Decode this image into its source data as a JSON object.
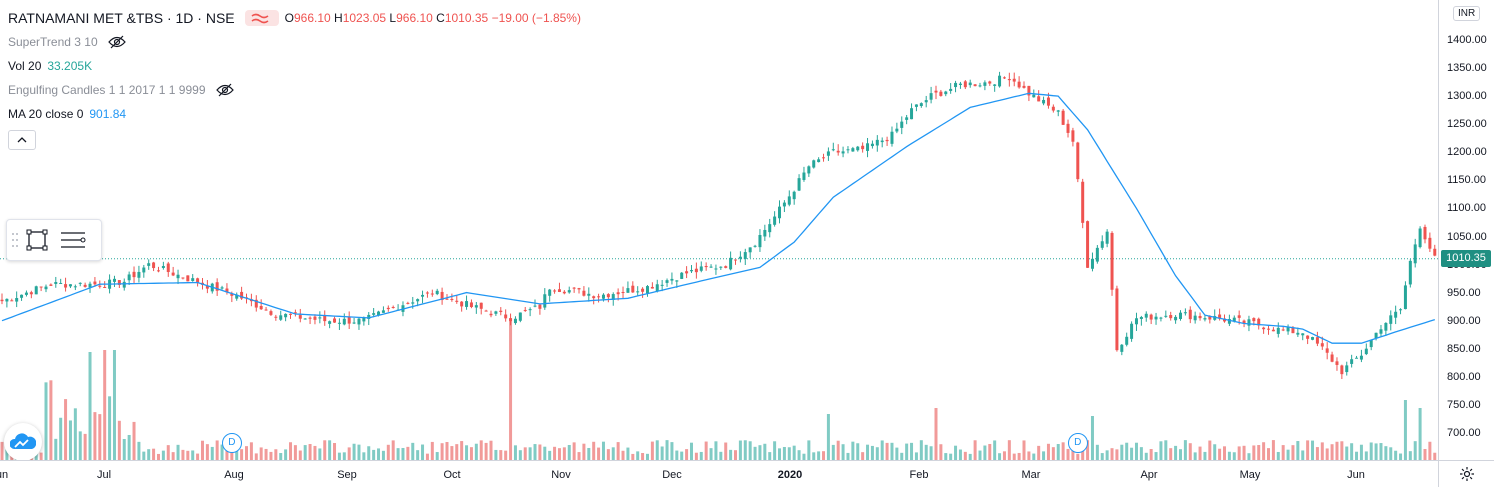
{
  "legend": {
    "symbol": "RATNAMANI MET &TBS · 1D · NSE",
    "ohlc": {
      "o_label": "O",
      "o": "966.10",
      "h_label": "H",
      "h": "1023.05",
      "l_label": "L",
      "l": "966.10",
      "c_label": "C",
      "c": "1010.35",
      "change": "−19.00 (−1.85%)"
    },
    "supertrend": {
      "label": "SuperTrend 3 10"
    },
    "vol": {
      "label": "Vol 20",
      "value": "33.205K"
    },
    "engulfing": {
      "label": "Engulfing Candles 1 1 2017 1 1 9999"
    },
    "ma": {
      "label": "MA 20 close 0",
      "value": "901.84"
    }
  },
  "price_axis": {
    "currency": "INR",
    "ticks": [
      "1400.00",
      "1350.00",
      "1300.00",
      "1250.00",
      "1200.00",
      "1150.00",
      "1100.00",
      "1050.00",
      "1000.00",
      "950.00",
      "900.00",
      "850.00",
      "800.00",
      "750.00",
      "700.00"
    ],
    "last_price": "1010.35"
  },
  "time_axis": {
    "labels": [
      "un",
      "Jul",
      "Aug",
      "Sep",
      "Oct",
      "Nov",
      "Dec",
      "2020",
      "Feb",
      "Mar",
      "Apr",
      "May",
      "Jun"
    ]
  },
  "markers": {
    "dividend": "D"
  },
  "colors": {
    "up": "#26a69a",
    "down": "#ef5350",
    "ma": "#2196f3",
    "up_vol": "#80cbc4",
    "down_vol": "#f19a99",
    "last_line": "#26a69a"
  },
  "icons": {
    "eye_hidden": "eye-crossed-icon",
    "collapse": "chevron-up-icon",
    "rect_tool": "rectangle-select-icon",
    "lines_tool": "horizontal-lines-icon",
    "logo": "tradingview-cloud-logo",
    "settings": "gear-icon"
  },
  "chart_data": {
    "type": "candlestick",
    "price_range": [
      680,
      1430
    ],
    "x_labels": [
      "un",
      "Jul",
      "Aug",
      "Sep",
      "Oct",
      "Nov",
      "Dec",
      "2020",
      "Feb",
      "Mar",
      "Apr",
      "May",
      "Jun"
    ],
    "waypoints_close": [
      [
        0,
        935
      ],
      [
        10,
        965
      ],
      [
        20,
        965
      ],
      [
        25,
        970
      ],
      [
        30,
        1000
      ],
      [
        38,
        975
      ],
      [
        48,
        945
      ],
      [
        56,
        912
      ],
      [
        66,
        900
      ],
      [
        74,
        900
      ],
      [
        82,
        930
      ],
      [
        88,
        950
      ],
      [
        96,
        925
      ],
      [
        104,
        905
      ],
      [
        110,
        925
      ],
      [
        112,
        960
      ],
      [
        122,
        945
      ],
      [
        132,
        960
      ],
      [
        140,
        985
      ],
      [
        148,
        1000
      ],
      [
        154,
        1040
      ],
      [
        158,
        1085
      ],
      [
        162,
        1135
      ],
      [
        165,
        1175
      ],
      [
        170,
        1200
      ],
      [
        176,
        1205
      ],
      [
        182,
        1230
      ],
      [
        186,
        1275
      ],
      [
        190,
        1300
      ],
      [
        196,
        1320
      ],
      [
        202,
        1325
      ],
      [
        206,
        1335
      ],
      [
        210,
        1305
      ],
      [
        216,
        1270
      ],
      [
        219,
        1220
      ],
      [
        222,
        1000
      ],
      [
        226,
        1060
      ],
      [
        228,
        850
      ],
      [
        232,
        905
      ],
      [
        240,
        912
      ],
      [
        248,
        905
      ],
      [
        256,
        895
      ],
      [
        262,
        882
      ],
      [
        266,
        880
      ],
      [
        270,
        850
      ],
      [
        274,
        810
      ],
      [
        278,
        840
      ],
      [
        282,
        890
      ],
      [
        286,
        920
      ],
      [
        288,
        1005
      ],
      [
        290,
        1070
      ],
      [
        293,
        1010
      ]
    ],
    "ma20_points": [
      [
        0,
        900
      ],
      [
        20,
        965
      ],
      [
        40,
        968
      ],
      [
        60,
        912
      ],
      [
        75,
        905
      ],
      [
        95,
        950
      ],
      [
        110,
        930
      ],
      [
        128,
        940
      ],
      [
        145,
        975
      ],
      [
        155,
        995
      ],
      [
        162,
        1040
      ],
      [
        170,
        1120
      ],
      [
        185,
        1210
      ],
      [
        198,
        1280
      ],
      [
        210,
        1305
      ],
      [
        216,
        1300
      ],
      [
        222,
        1240
      ],
      [
        232,
        1100
      ],
      [
        240,
        980
      ],
      [
        246,
        910
      ],
      [
        254,
        895
      ],
      [
        262,
        890
      ],
      [
        266,
        885
      ],
      [
        272,
        860
      ],
      [
        278,
        860
      ],
      [
        285,
        880
      ],
      [
        293,
        902
      ]
    ],
    "volume_spikes": [
      [
        18,
        270
      ],
      [
        21,
        275
      ],
      [
        23,
        275
      ],
      [
        104,
        345
      ],
      [
        169,
        115
      ],
      [
        191,
        130
      ],
      [
        223,
        110
      ],
      [
        290,
        130
      ],
      [
        287,
        150
      ]
    ],
    "dividend_bars": [
      47,
      220
    ]
  }
}
